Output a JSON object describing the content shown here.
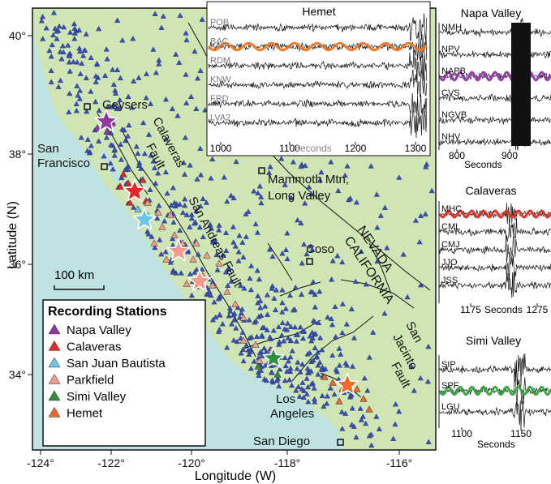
{
  "colors": {
    "ocean": "#bfe3e2",
    "land": "#cfe6b4",
    "station_dots": "#3a4fb5",
    "napa": "#8e3a9e",
    "calaveras": "#e02a2a",
    "sjb": "#6cc6e6",
    "parkfield": "#f29a8c",
    "simi": "#2e8f3e",
    "hemet": "#f06a2a",
    "trace_orange": "#f07a2a",
    "trace_purple": "#9a3ab0",
    "trace_red": "#e0342a",
    "trace_green": "#3aa645"
  },
  "map": {
    "y_axis_label": "Latitude (N)",
    "x_axis_label": "Longitude (W)",
    "lat_ticks": [
      "40°",
      "38°",
      "36°",
      "34°"
    ],
    "lon_ticks": [
      "-124°",
      "-122°",
      "-120°",
      "-118°",
      "-116°"
    ],
    "scale_label": "100 km",
    "labels": {
      "geysers": "Geysers",
      "san_francisco_1": "San",
      "san_francisco_2": "Francisco",
      "calaveras_1": "Calaveras",
      "calaveras_2": "Fault",
      "san_andreas": "San Andreas Fault",
      "mammoth_1": "Mammoth Mtn,",
      "mammoth_2": "Long Valley",
      "coso": "Coso",
      "nevada": "NEVADA",
      "california": "CALIFORNIA",
      "san_jacinto_1": "San",
      "san_jacinto_2": "Jacinto",
      "san_jacinto_3": "Fault",
      "los_angeles_1": "Los",
      "los_angeles_2": "Angeles",
      "san_diego": "San Diego"
    }
  },
  "legend": {
    "title": "Recording Stations",
    "items": [
      "Napa Valley",
      "Calaveras",
      "San Juan Bautista",
      "Parkfield",
      "Simi Valley",
      "Hemet"
    ],
    "item_color_keys": [
      "napa",
      "calaveras",
      "sjb",
      "parkfield",
      "simi",
      "hemet"
    ]
  },
  "hemet_panel": {
    "title": "Hemet",
    "stations": [
      "POB",
      "BAC",
      "RDM",
      "KNW",
      "FRD",
      "LVA2"
    ],
    "x_ticks": [
      "1000",
      "1100",
      "1200",
      "1300"
    ],
    "x_label": "Seconds"
  },
  "napa_panel": {
    "title": "Napa Valley",
    "stations": [
      "NMH",
      "NPV",
      "NAPB",
      "CVS",
      "NGVB",
      "NHV"
    ],
    "x_ticks": [
      "800",
      "900"
    ],
    "x_label": "Seconds"
  },
  "calaveras_panel": {
    "title": "Calaveras",
    "stations": [
      "MHC",
      "CML",
      "CMJ",
      "JJO",
      "JSS"
    ],
    "x_ticks": [
      "1175",
      "1275"
    ],
    "x_label": "Seconds"
  },
  "simi_panel": {
    "title": "Simi Valley",
    "stations": [
      "SIP",
      "SPF",
      "LGU"
    ],
    "x_ticks": [
      "1100",
      "1150"
    ],
    "x_label": "Seconds"
  }
}
